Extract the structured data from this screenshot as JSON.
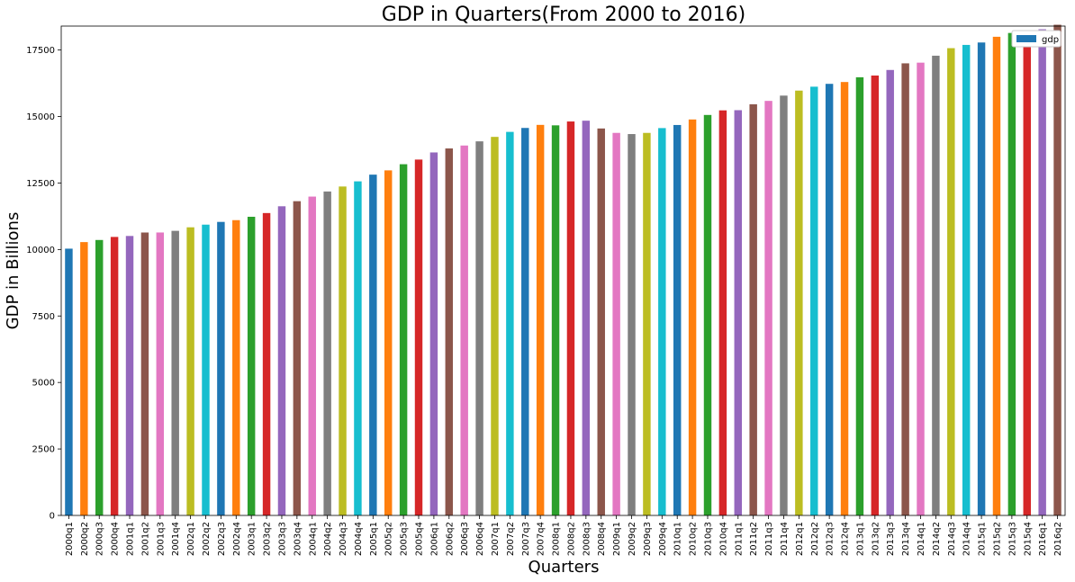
{
  "chart_data": {
    "type": "bar",
    "title": "GDP in Quarters(From 2000 to 2016)",
    "xlabel": "Quarters",
    "ylabel": "GDP in Billions",
    "ylim": [
      0,
      18400
    ],
    "yticks": [
      0,
      2500,
      5000,
      7500,
      10000,
      12500,
      15000,
      17500
    ],
    "grid": false,
    "legend": {
      "position": "top-right",
      "entries": [
        "gdp"
      ]
    },
    "colors": [
      "#1f77b4",
      "#ff7f0e",
      "#2ca02c",
      "#d62728",
      "#9467bd",
      "#8c564b",
      "#e377c2",
      "#7f7f7f",
      "#bcbd22",
      "#17becf"
    ],
    "categories": [
      "2000q1",
      "2000q2",
      "2000q3",
      "2000q4",
      "2001q1",
      "2001q2",
      "2001q3",
      "2001q4",
      "2002q1",
      "2002q2",
      "2002q3",
      "2002q4",
      "2003q1",
      "2003q2",
      "2003q3",
      "2003q4",
      "2004q1",
      "2004q2",
      "2004q3",
      "2004q4",
      "2005q1",
      "2005q2",
      "2005q3",
      "2005q4",
      "2006q1",
      "2006q2",
      "2006q3",
      "2006q4",
      "2007q1",
      "2007q2",
      "2007q3",
      "2007q4",
      "2008q1",
      "2008q2",
      "2008q3",
      "2008q4",
      "2009q1",
      "2009q2",
      "2009q3",
      "2009q4",
      "2010q1",
      "2010q2",
      "2010q3",
      "2010q4",
      "2011q1",
      "2011q2",
      "2011q3",
      "2011q4",
      "2012q1",
      "2012q2",
      "2012q3",
      "2012q4",
      "2013q1",
      "2013q2",
      "2013q3",
      "2013q4",
      "2014q1",
      "2014q2",
      "2014q3",
      "2014q4",
      "2015q1",
      "2015q2",
      "2015q3",
      "2015q4",
      "2016q1",
      "2016q2"
    ],
    "series": [
      {
        "name": "gdp",
        "values": [
          10031,
          10278,
          10357,
          10472,
          10508,
          10638,
          10639,
          10701,
          10834,
          10934,
          11037,
          11103,
          11230,
          11370,
          11625,
          11816,
          11989,
          12181,
          12368,
          12562,
          12814,
          12975,
          13206,
          13381,
          13649,
          13799,
          13909,
          14066,
          14234,
          14422,
          14570,
          14685,
          14668,
          14813,
          14843,
          14550,
          14384,
          14340,
          14384,
          14565,
          14681,
          14889,
          15058,
          15231,
          15238,
          15461,
          15587,
          15786,
          15974,
          16121,
          16228,
          16297,
          16476,
          16541,
          16750,
          16999,
          17025,
          17286,
          17570,
          17692,
          17783,
          17998,
          18141,
          18222,
          18281,
          18450
        ]
      }
    ]
  }
}
